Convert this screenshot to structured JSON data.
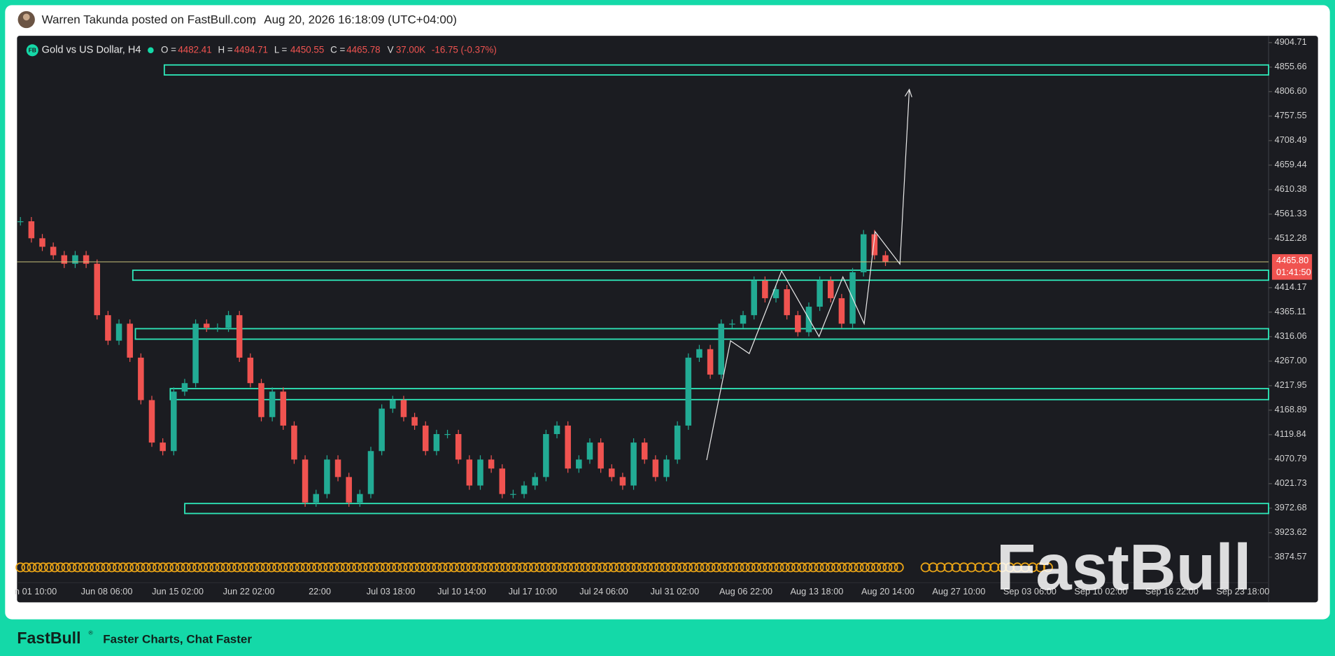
{
  "header": {
    "author_line": "Warren Takunda posted on FastBull.com",
    "separator": ",",
    "timestamp": "Aug 20, 2026 16:18:09 (UTC+04:00)"
  },
  "legend": {
    "symbol": "Gold vs US Dollar, H4",
    "o_label": "O =",
    "o_value": "4482.41",
    "h_label": "H =",
    "h_value": "4494.71",
    "l_label": "L =",
    "l_value": "4450.55",
    "c_label": "C =",
    "c_value": "4465.78",
    "v_label": "V",
    "v_value": "37.00K",
    "change": "-16.75 (-0.37%)"
  },
  "price_axis": {
    "ticks": [
      {
        "value": 4904.71,
        "label": "4904.71"
      },
      {
        "value": 4855.66,
        "label": "4855.66"
      },
      {
        "value": 4806.6,
        "label": "4806.60"
      },
      {
        "value": 4757.55,
        "label": "4757.55"
      },
      {
        "value": 4708.49,
        "label": "4708.49"
      },
      {
        "value": 4659.44,
        "label": "4659.44"
      },
      {
        "value": 4610.38,
        "label": "4610.38"
      },
      {
        "value": 4561.33,
        "label": "4561.33"
      },
      {
        "value": 4512.28,
        "label": "4512.28"
      },
      {
        "value": 4414.17,
        "label": "4414.17"
      },
      {
        "value": 4365.11,
        "label": "4365.11"
      },
      {
        "value": 4316.06,
        "label": "4316.06"
      },
      {
        "value": 4267.0,
        "label": "4267.00"
      },
      {
        "value": 4217.95,
        "label": "4217.95"
      },
      {
        "value": 4168.89,
        "label": "4168.89"
      },
      {
        "value": 4119.84,
        "label": "4119.84"
      },
      {
        "value": 4070.79,
        "label": "4070.79"
      },
      {
        "value": 4021.73,
        "label": "4021.73"
      },
      {
        "value": 3972.68,
        "label": "3972.68"
      },
      {
        "value": 3923.62,
        "label": "3923.62"
      },
      {
        "value": 3874.57,
        "label": "3874.57"
      }
    ]
  },
  "current_price": {
    "value": 4465.8,
    "label": "4465.80",
    "countdown": "01:41:50"
  },
  "time_axis": [
    "n 01 10:00",
    "Jun 08 06:00",
    "Jun 15 02:00",
    "Jun 22 02:00",
    "22:00",
    "Jul 03 18:00",
    "Jul 10 14:00",
    "Jul 17 10:00",
    "Jul 24 06:00",
    "Jul 31 02:00",
    "Aug 06 22:00",
    "Aug 13 18:00",
    "Aug 20 14:00",
    "Aug 27 10:00",
    "Sep 03 06:00",
    "Sep 10 02:00",
    "Sep 16 22:00",
    "Sep 23 18:00"
  ],
  "zones": [
    {
      "top": 4860,
      "bottom": 4840
    },
    {
      "top": 4449,
      "bottom": 4429
    },
    {
      "top": 4332,
      "bottom": 4311
    },
    {
      "top": 4212,
      "bottom": 4190
    },
    {
      "top": 3982,
      "bottom": 3962
    }
  ],
  "closes": [
    4547,
    4513,
    4496,
    4479,
    4462,
    4479,
    4462,
    4359,
    4308,
    4342,
    4274,
    4189,
    4104,
    4087,
    4206,
    4223,
    4342,
    4334,
    4334,
    4359,
    4274,
    4223,
    4155,
    4206,
    4138,
    4070,
    3984,
    4001,
    4070,
    4035,
    3984,
    4001,
    4087,
    4172,
    4189,
    4155,
    4138,
    4087,
    4121,
    4121,
    4070,
    4018,
    4070,
    4052,
    4001,
    4001,
    4018,
    4035,
    4121,
    4138,
    4052,
    4070,
    4104,
    4052,
    4035,
    4018,
    4104,
    4070,
    4035,
    4070,
    4138,
    4274,
    4291,
    4240,
    4342,
    4342,
    4359,
    4428,
    4393,
    4411,
    4359,
    4325,
    4376,
    4428,
    4393,
    4342,
    4445,
    4521,
    4479,
    4466
  ],
  "watermark": "FastBull",
  "footer": {
    "brand": "FastBull",
    "mark": "®",
    "tagline": "Faster Charts, Chat Faster"
  }
}
